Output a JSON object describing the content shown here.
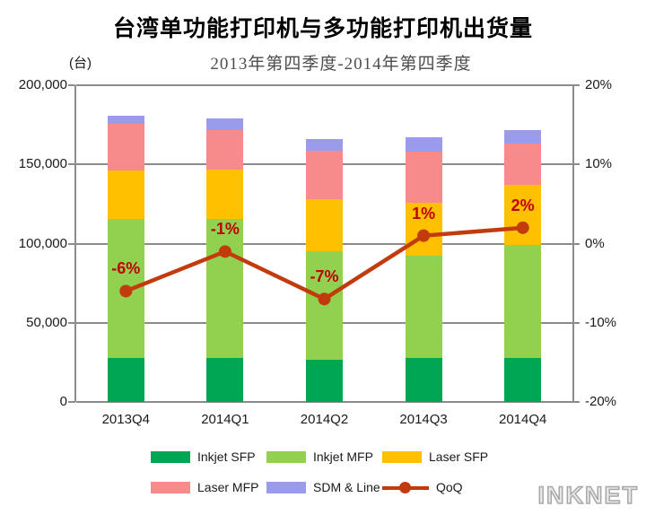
{
  "watermark": "INKNET",
  "chart_data": {
    "type": "bar",
    "variant": "stacked-columns-with-line-overlay",
    "title": "台湾单功能打印机与多功能打印机出货量",
    "subtitle": "2013年第四季度-2014年第四季度",
    "unit_label": "(台)",
    "categories": [
      "2013Q4",
      "2014Q1",
      "2014Q2",
      "2014Q3",
      "2014Q4"
    ],
    "series": [
      {
        "name": "Inkjet SFP",
        "color": "#00A651",
        "values": [
          28000,
          27500,
          26500,
          27500,
          27500
        ]
      },
      {
        "name": "Inkjet MFP",
        "color": "#92D050",
        "values": [
          87500,
          88000,
          68500,
          65000,
          71500
        ]
      },
      {
        "name": "Laser SFP",
        "color": "#FFC000",
        "values": [
          30500,
          31000,
          33000,
          33000,
          38000
        ]
      },
      {
        "name": "Laser MFP",
        "color": "#F78A8A",
        "values": [
          29500,
          25000,
          30500,
          32500,
          26000
        ]
      },
      {
        "name": "SDM & Line",
        "color": "#9B9BEB",
        "values": [
          5500,
          7500,
          7500,
          9000,
          8500
        ]
      }
    ],
    "line_series": {
      "name": "QoQ",
      "color": "#C23B0C",
      "label_color": "#C00000",
      "values": [
        -6,
        -1,
        -7,
        1,
        2
      ],
      "labels": [
        "-6%",
        "-1%",
        "-7%",
        "1%",
        "2%"
      ]
    },
    "left_axis": {
      "min": 0,
      "max": 200000,
      "tick_labels": [
        "0",
        "50,000",
        "100,000",
        "150,000",
        "200,000"
      ]
    },
    "right_axis": {
      "min": -20,
      "max": 20,
      "tick_labels": [
        "-20%",
        "-10%",
        "0%",
        "10%",
        "20%"
      ]
    },
    "grid": true,
    "gridline_color": "#8C8C8C",
    "axis_text_color": "#1A1A1A",
    "legend_position": "bottom",
    "legend_rows": [
      [
        "Inkjet SFP",
        "Inkjet MFP",
        "Laser SFP"
      ],
      [
        "Laser MFP",
        "SDM & Line",
        "QoQ"
      ]
    ]
  }
}
